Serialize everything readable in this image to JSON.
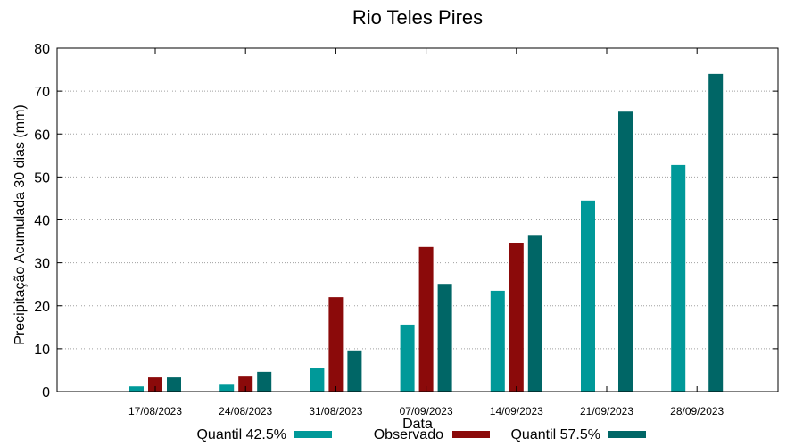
{
  "chart_data": {
    "type": "bar",
    "title": "Rio Teles Pires",
    "xlabel": "Data",
    "ylabel": "Precipitação Acumulada 30 dias (mm)",
    "ylim": [
      0,
      80
    ],
    "yticks": [
      0,
      10,
      20,
      30,
      40,
      50,
      60,
      70,
      80
    ],
    "grid": true,
    "legend_position": "bottom",
    "categories": [
      "17/08/2023",
      "24/08/2023",
      "31/08/2023",
      "07/09/2023",
      "14/09/2023",
      "21/09/2023",
      "28/09/2023"
    ],
    "series": [
      {
        "name": "Quantil 42.5%",
        "color": "#009999",
        "values": [
          1.2,
          1.6,
          5.4,
          15.6,
          23.5,
          44.5,
          52.8
        ]
      },
      {
        "name": "Observado",
        "color": "#8b0a0a",
        "values": [
          3.3,
          3.5,
          22.0,
          33.7,
          34.7,
          null,
          null
        ]
      },
      {
        "name": "Quantil 57.5%",
        "color": "#006666",
        "values": [
          3.3,
          4.6,
          9.6,
          25.1,
          36.3,
          65.2,
          74.0
        ]
      }
    ]
  }
}
